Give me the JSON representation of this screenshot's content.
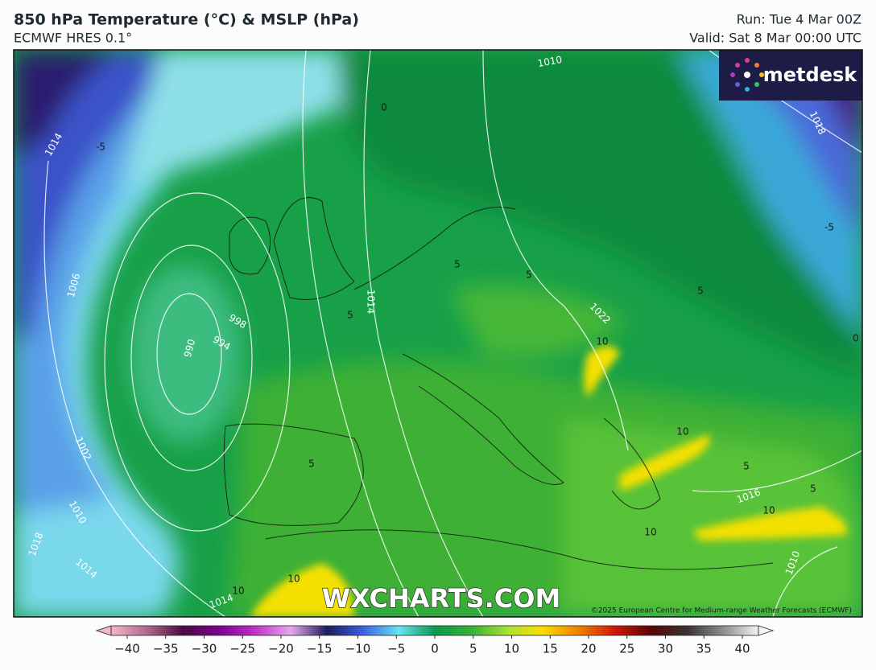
{
  "header": {
    "title": "850 hPa Temperature (°C) & MSLP (hPa)",
    "subtitle": "ECMWF HRES 0.1°",
    "run": "Run: Tue 4 Mar 00Z",
    "valid": "Valid: Sat 8 Mar 00:00 UTC"
  },
  "logo": "metdesk",
  "watermark": "WXCHARTS.COM",
  "copyright": "©2025 European Centre for Medium-range Weather Forecasts (ECMWF)",
  "map_labels": {
    "isobars": [
      1010,
      1014,
      1006,
      998,
      994,
      990,
      1002,
      1010,
      1018,
      1014,
      1014,
      1018,
      1014,
      1022,
      1016,
      1010
    ],
    "isotherms": [
      0,
      -5,
      -5,
      5,
      5,
      5,
      5,
      10,
      10,
      5,
      5,
      5,
      10,
      10,
      10,
      10,
      0
    ]
  },
  "colorbar": {
    "range": [
      -40,
      40
    ],
    "colors": [
      "#f4b4cc",
      "#b06a8c",
      "#4a0a40",
      "#7a0090",
      "#c030c8",
      "#e8a8ec",
      "#1c1c5c",
      "#3c5ee0",
      "#66e4f4",
      "#0a9a50",
      "#34b034",
      "#a8e034",
      "#f8e000",
      "#f08000",
      "#d01808",
      "#5a0404",
      "#3a3232",
      "#8c8c8c",
      "#f4f4f4"
    ],
    "ticks": [
      {
        "value": -40,
        "label": "−40"
      },
      {
        "value": -35,
        "label": "−35"
      },
      {
        "value": -30,
        "label": "−30"
      },
      {
        "value": -25,
        "label": "−25"
      },
      {
        "value": -20,
        "label": "−20"
      },
      {
        "value": -15,
        "label": "−15"
      },
      {
        "value": -10,
        "label": "−10"
      },
      {
        "value": -5,
        "label": "−5"
      },
      0,
      5,
      10,
      15,
      20,
      25,
      30,
      35,
      40
    ]
  }
}
